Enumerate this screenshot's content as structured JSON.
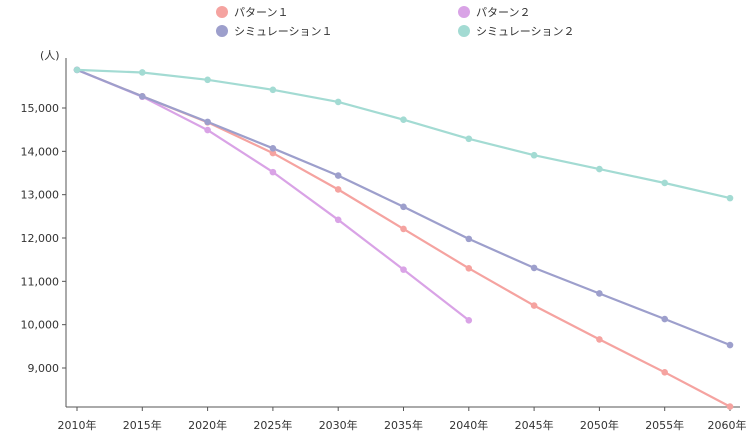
{
  "chart_data": {
    "type": "line",
    "title": "",
    "xlabel": "",
    "ylabel": "(人)",
    "categories": [
      "2010年",
      "2015年",
      "2020年",
      "2025年",
      "2030年",
      "2035年",
      "2040年",
      "2045年",
      "2050年",
      "2055年",
      "2060年"
    ],
    "ylim": [
      8200,
      15950
    ],
    "yticks": [
      "9,000",
      "10,000",
      "11,000",
      "12,000",
      "13,000",
      "14,000",
      "15,000"
    ],
    "ytick_values": [
      9000,
      10000,
      11000,
      12000,
      13000,
      14000,
      15000
    ],
    "grid": false,
    "legend_position": "top",
    "series": [
      {
        "name": "パターン１",
        "color": "#f5a3a0",
        "values": [
          15880,
          15270,
          14670,
          13960,
          13120,
          12210,
          11300,
          10440,
          9660,
          8900,
          8110
        ]
      },
      {
        "name": "パターン２",
        "color": "#d9a3e6",
        "values": [
          15880,
          15260,
          14490,
          13520,
          12420,
          11270,
          10100,
          null,
          null,
          null,
          null
        ]
      },
      {
        "name": "シミュレーション１",
        "color": "#9d9fcc",
        "values": [
          15880,
          15270,
          14680,
          14070,
          13440,
          12720,
          11980,
          11310,
          10720,
          10130,
          9530
        ]
      },
      {
        "name": "シミュレーション２",
        "color": "#a3dbd3",
        "values": [
          15880,
          15820,
          15650,
          15420,
          15140,
          14730,
          14290,
          13910,
          13590,
          13270,
          12920
        ]
      }
    ]
  }
}
